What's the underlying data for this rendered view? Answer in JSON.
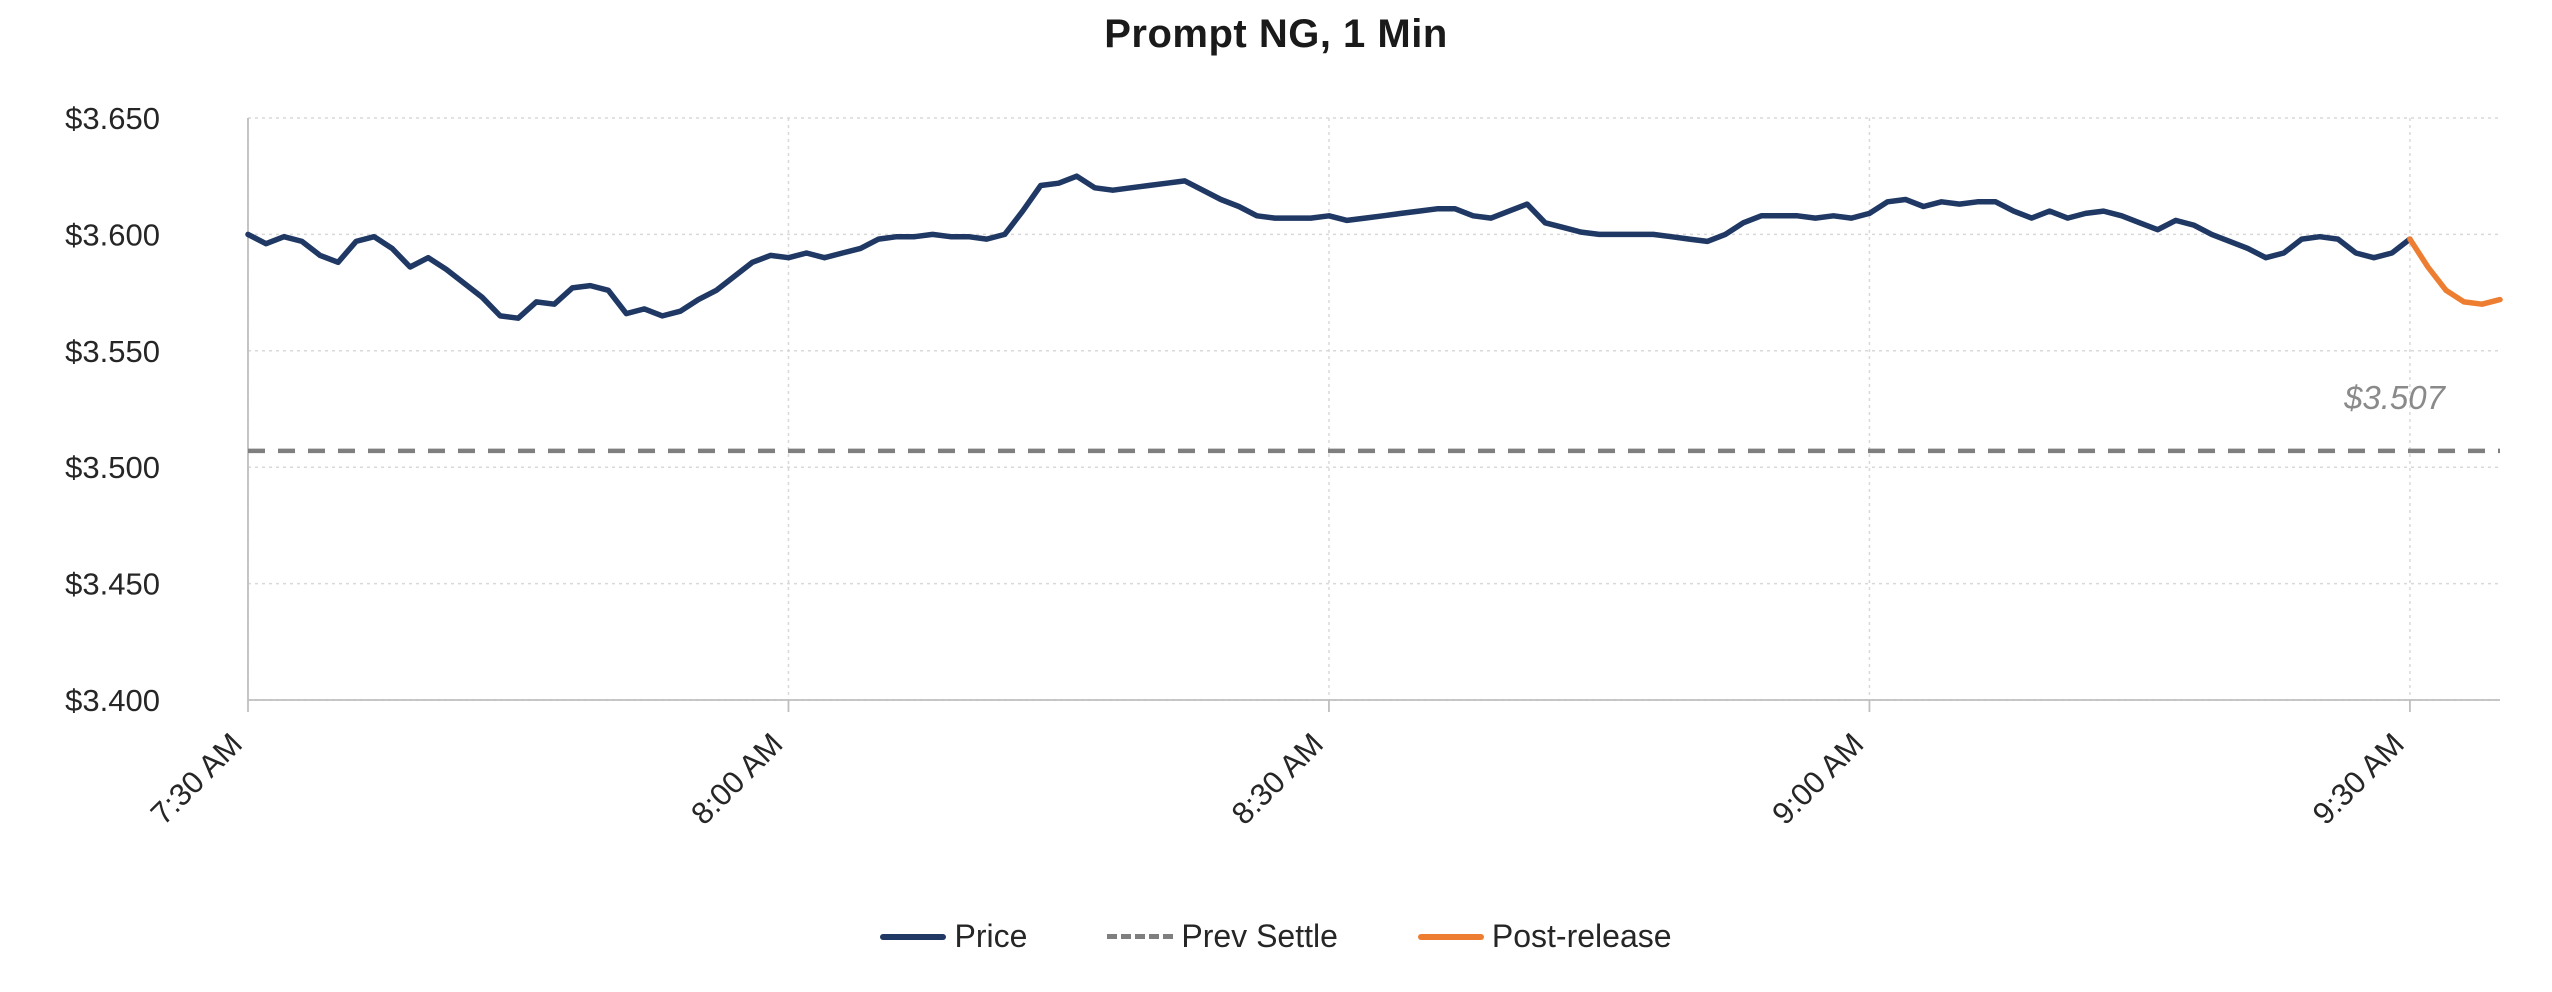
{
  "title": "Prompt NG, 1 Min",
  "legend": {
    "items": [
      {
        "label": "Price",
        "color": "#1f3864",
        "style": "solid"
      },
      {
        "label": "Prev Settle",
        "color": "#7f7f7f",
        "style": "dashed"
      },
      {
        "label": "Post-release",
        "color": "#ed7d31",
        "style": "solid"
      }
    ]
  },
  "chart_data": {
    "type": "line",
    "title": "Prompt NG, 1 Min",
    "x_axis": {
      "start_time": "7:30 AM",
      "interval_minutes": 1,
      "total_minutes": 125,
      "tick_minutes": [
        0,
        30,
        60,
        90,
        120
      ],
      "tick_labels": [
        "7:30 AM",
        "8:00 AM",
        "8:30 AM",
        "9:00 AM",
        "9:30 AM"
      ]
    },
    "y_axis": {
      "min": 3.4,
      "max": 3.65,
      "tick_step": 0.05,
      "tick_labels": [
        "$3.400",
        "$3.450",
        "$3.500",
        "$3.550",
        "$3.600",
        "$3.650"
      ]
    },
    "grid": true,
    "legend_position": "bottom",
    "prev_settle": {
      "value": 3.507,
      "label": "$3.507",
      "color": "#7f7f7f"
    },
    "series": [
      {
        "name": "Price",
        "color": "#1f3864",
        "style": "solid",
        "start_minute": 0,
        "values": [
          3.6,
          3.596,
          3.599,
          3.597,
          3.591,
          3.588,
          3.597,
          3.599,
          3.594,
          3.586,
          3.59,
          3.585,
          3.579,
          3.573,
          3.565,
          3.564,
          3.571,
          3.57,
          3.577,
          3.578,
          3.576,
          3.566,
          3.568,
          3.565,
          3.567,
          3.572,
          3.576,
          3.582,
          3.588,
          3.591,
          3.59,
          3.592,
          3.59,
          3.592,
          3.594,
          3.598,
          3.599,
          3.599,
          3.6,
          3.599,
          3.599,
          3.598,
          3.6,
          3.61,
          3.621,
          3.622,
          3.625,
          3.62,
          3.619,
          3.62,
          3.621,
          3.622,
          3.623,
          3.619,
          3.615,
          3.612,
          3.608,
          3.607,
          3.607,
          3.607,
          3.608,
          3.606,
          3.607,
          3.608,
          3.609,
          3.61,
          3.611,
          3.611,
          3.608,
          3.607,
          3.61,
          3.613,
          3.605,
          3.603,
          3.601,
          3.6,
          3.6,
          3.6,
          3.6,
          3.599,
          3.598,
          3.597,
          3.6,
          3.605,
          3.608,
          3.608,
          3.608,
          3.607,
          3.608,
          3.607,
          3.609,
          3.614,
          3.615,
          3.612,
          3.614,
          3.613,
          3.614,
          3.614,
          3.61,
          3.607,
          3.61,
          3.607,
          3.609,
          3.61,
          3.608,
          3.605,
          3.602,
          3.606,
          3.604,
          3.6,
          3.597,
          3.594,
          3.59,
          3.592,
          3.598,
          3.599,
          3.598,
          3.592,
          3.59,
          3.592,
          3.598
        ]
      },
      {
        "name": "Post-release",
        "color": "#ed7d31",
        "style": "solid",
        "start_minute": 120,
        "values": [
          3.598,
          3.586,
          3.576,
          3.571,
          3.57,
          3.572
        ]
      }
    ]
  }
}
